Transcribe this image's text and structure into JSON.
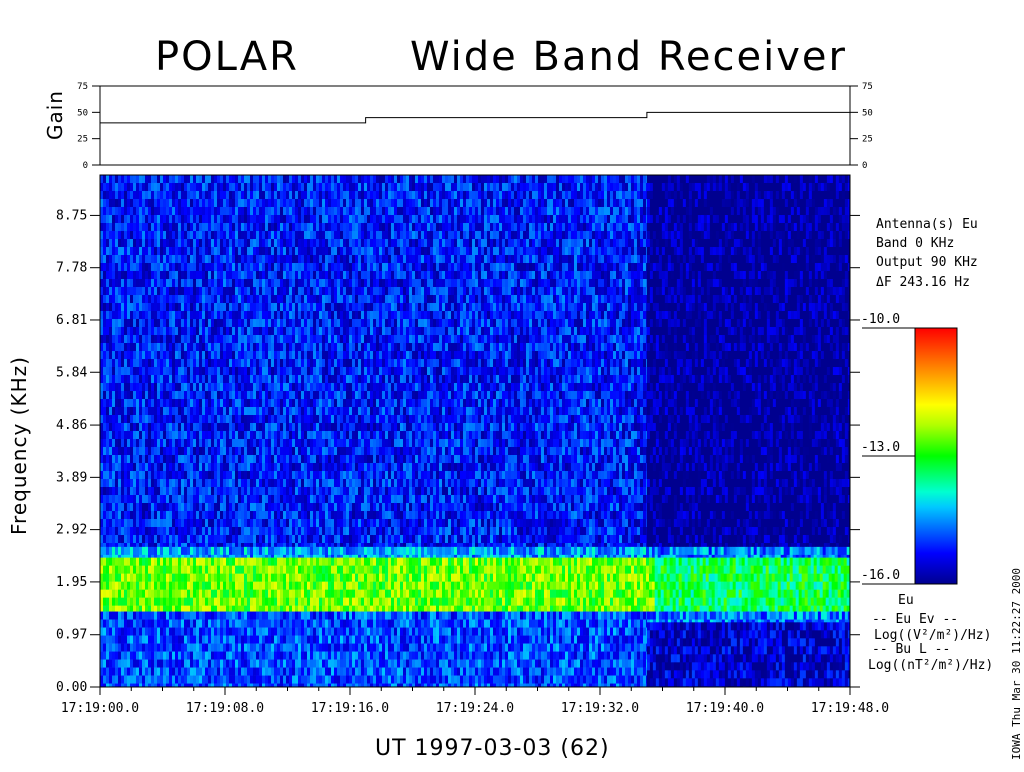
{
  "title_left": "POLAR",
  "title_right": "Wide Band Receiver",
  "gain_panel": {
    "ylabel": "Gain",
    "yticks": [
      "75",
      "50",
      "25",
      "0"
    ],
    "ylim": [
      0,
      75
    ],
    "x_range": [
      0,
      48
    ],
    "steps": [
      {
        "t0": 0,
        "t1": 17,
        "value": 40
      },
      {
        "t0": 17,
        "t1": 35,
        "value": 45
      },
      {
        "t0": 35,
        "t1": 48,
        "value": 50
      }
    ]
  },
  "chart_data": {
    "type": "heatmap",
    "title": "POLAR Wide Band Receiver",
    "xlabel": "UT 1997-03-03  (62)",
    "ylabel": "Frequency (KHz)",
    "x_ticks": [
      "17:19:00.0",
      "17:19:08.0",
      "17:19:16.0",
      "17:19:24.0",
      "17:19:32.0",
      "17:19:40.0",
      "17:19:48.0"
    ],
    "x_range_seconds": [
      0,
      48
    ],
    "y_ticks": [
      "0.00",
      "0.97",
      "1.95",
      "2.92",
      "3.89",
      "4.86",
      "5.84",
      "6.81",
      "7.78",
      "8.75"
    ],
    "ylim": [
      0,
      9.5
    ],
    "colorbar": {
      "min": -16.0,
      "max": -10.0,
      "ticks": [
        "-10.0",
        "-13.0",
        "-16.0"
      ]
    },
    "regions": [
      {
        "t0": 0,
        "t1": 35,
        "f0": 2.6,
        "f1": 9.5,
        "level": -15.2
      },
      {
        "t0": 35,
        "t1": 48,
        "f0": 2.6,
        "f1": 9.5,
        "level": -16.0
      },
      {
        "t0": 0,
        "t1": 35.5,
        "f0": 2.4,
        "f1": 2.6,
        "level": -14.4
      },
      {
        "t0": 35.5,
        "t1": 48,
        "f0": 2.4,
        "f1": 2.6,
        "level": -14.6
      },
      {
        "t0": 0,
        "t1": 35.5,
        "f0": 1.4,
        "f1": 2.4,
        "level": -12.6
      },
      {
        "t0": 35.5,
        "t1": 48,
        "f0": 1.4,
        "f1": 2.4,
        "level": -13.3
      },
      {
        "t0": 0,
        "t1": 35,
        "f0": 0,
        "f1": 1.4,
        "level": -14.9
      },
      {
        "t0": 35,
        "t1": 48,
        "f0": 1.2,
        "f1": 1.4,
        "level": -14.6
      },
      {
        "t0": 35,
        "t1": 48,
        "f0": 0,
        "f1": 1.2,
        "level": -15.6
      }
    ]
  },
  "info": {
    "antenna": "Antenna(s) Eu",
    "band": "Band 0 KHz",
    "output": "Output 90 KHz",
    "delta_f": "ΔF   243.16 Hz"
  },
  "legend": {
    "comp": "Eu",
    "line1": "-- Eu Ev --",
    "unit1": "Log((V²/m²)/Hz)",
    "line2": "-- Bu L --",
    "unit2": "Log((nT²/m²)/Hz)"
  },
  "stamp": "IOWA Thu Mar 30 11:22:27 2000"
}
